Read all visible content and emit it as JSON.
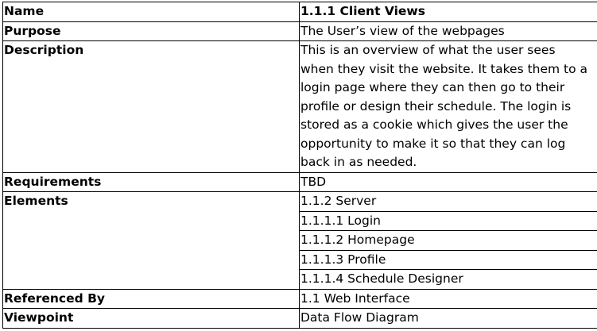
{
  "rows": {
    "name": {
      "label": "Name",
      "value": "1.1.1 Client Views"
    },
    "purpose": {
      "label": "Purpose",
      "value": "The User’s view of the webpages"
    },
    "description": {
      "label": "Description",
      "lines": [
        "This is an overview of what the user sees",
        "when they visit the website. It takes them to a",
        "login page where they can then go to their",
        "profile or design their schedule. The login is",
        "stored as a cookie which gives the user the",
        "opportunity to make it so that they can log",
        "back in as needed."
      ]
    },
    "requirements": {
      "label": "Requirements",
      "value": "TBD"
    },
    "elements": {
      "label": "Elements",
      "items": [
        "1.1.2 Server",
        "1.1.1.1 Login",
        "1.1.1.2 Homepage",
        "1.1.1.3 Profile",
        "1.1.1.4 Schedule Designer"
      ]
    },
    "referenced_by": {
      "label": "Referenced By",
      "value": "1.1 Web Interface"
    },
    "viewpoint": {
      "label": "Viewpoint",
      "value": "Data Flow Diagram"
    }
  }
}
